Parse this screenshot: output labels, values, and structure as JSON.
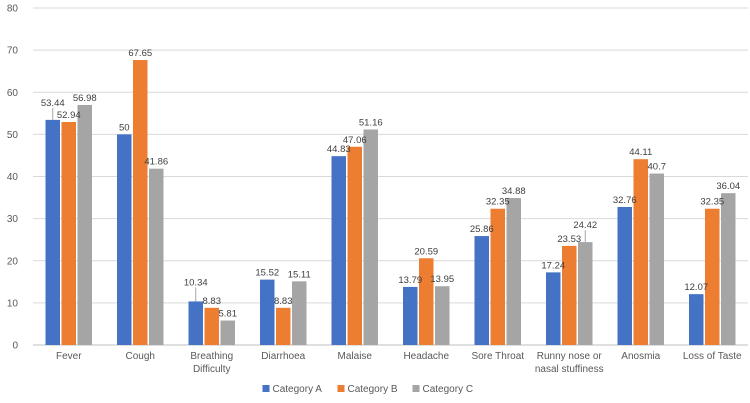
{
  "chart_data": {
    "type": "bar",
    "title": "",
    "xlabel": "",
    "ylabel": "",
    "ylim": [
      0,
      80
    ],
    "yticks": [
      0,
      10,
      20,
      30,
      40,
      50,
      60,
      70,
      80
    ],
    "grid": true,
    "legend_position": "bottom-center",
    "categories": [
      [
        "Fever"
      ],
      [
        "Cough"
      ],
      [
        "Breathing",
        "Difficulty"
      ],
      [
        "Diarrhoea"
      ],
      [
        "Malaise"
      ],
      [
        "Headache"
      ],
      [
        "Sore Throat"
      ],
      [
        "Runny nose or",
        "nasal stuffiness"
      ],
      [
        "Anosmia"
      ],
      [
        "Loss of Taste"
      ]
    ],
    "series": [
      {
        "name": "Category A",
        "color": "#4472c4",
        "values": [
          53.44,
          50,
          10.34,
          15.52,
          44.83,
          13.79,
          25.86,
          17.24,
          32.76,
          12.07
        ],
        "labels": [
          "53.44",
          "50",
          "10.34",
          "15.52",
          "44.83",
          "13.79",
          "25.86",
          "17.24",
          "32.76",
          "12.07"
        ]
      },
      {
        "name": "Category B",
        "color": "#ed7d31",
        "values": [
          52.94,
          67.65,
          8.83,
          8.83,
          47.06,
          20.59,
          32.35,
          23.53,
          44.11,
          32.35
        ],
        "labels": [
          "52.94",
          "67.65",
          "8.83",
          "8.83",
          "47.06",
          "20.59",
          "32.35",
          "23.53",
          "44.11",
          "32.35"
        ]
      },
      {
        "name": "Category C",
        "color": "#a5a5a5",
        "values": [
          56.98,
          41.86,
          5.81,
          15.11,
          51.16,
          13.95,
          34.88,
          24.42,
          40.7,
          36.04
        ],
        "labels": [
          "56.98",
          "41.86",
          "5.81",
          "15.11",
          "51.16",
          "13.95",
          "34.88",
          "24.42",
          "40.7",
          "36.04"
        ]
      }
    ]
  }
}
